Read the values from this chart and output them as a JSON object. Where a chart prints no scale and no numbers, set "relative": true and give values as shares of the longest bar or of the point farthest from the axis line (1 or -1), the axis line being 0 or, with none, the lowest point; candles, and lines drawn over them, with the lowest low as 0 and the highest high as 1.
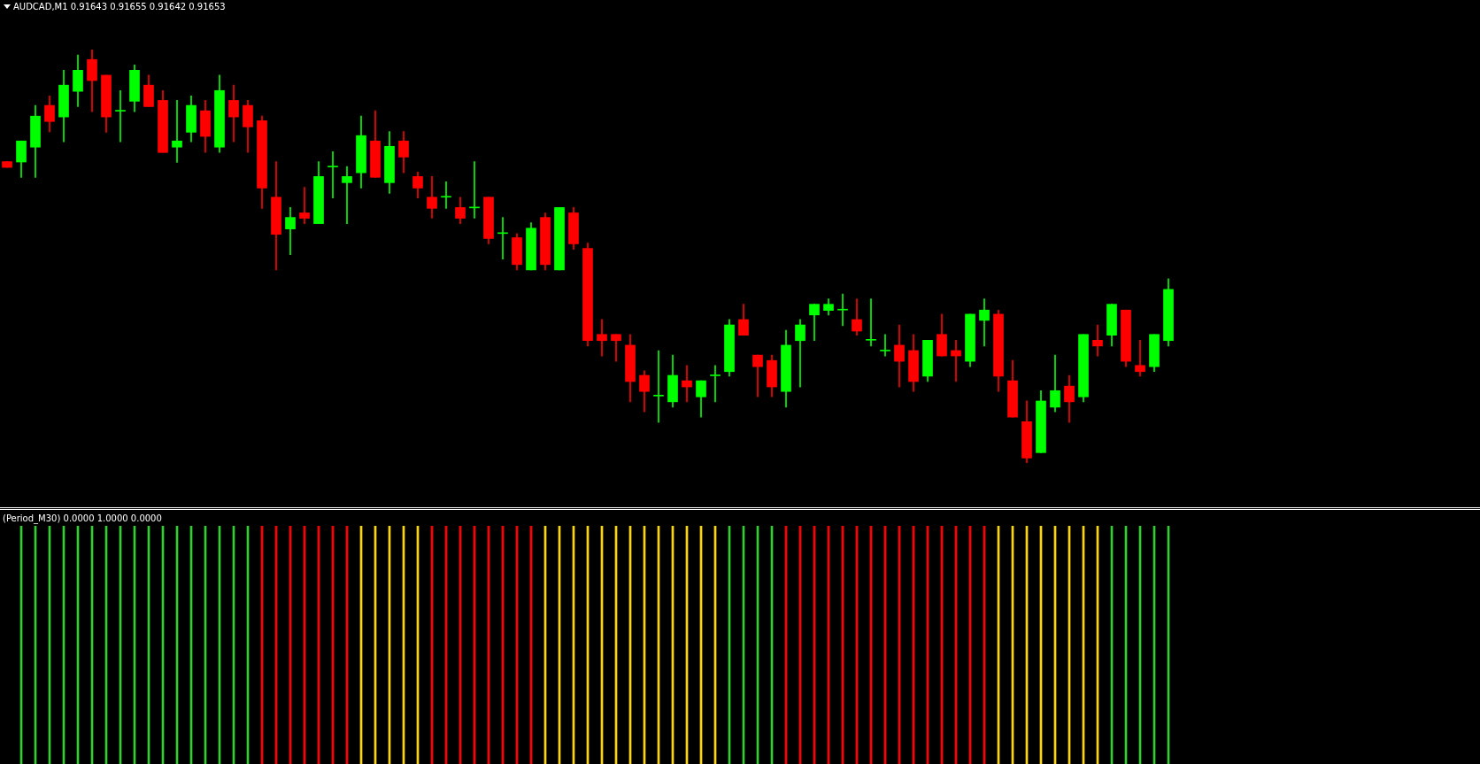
{
  "chart_data": [
    {
      "type": "candlestick",
      "title": "AUDCAD,M1 0.91643 0.91655 0.91642 0.91653",
      "relative": true,
      "categories": [
        null,
        null,
        null,
        null,
        null,
        null,
        null,
        null,
        null,
        null,
        null,
        null,
        null,
        null,
        null,
        null,
        null,
        null,
        null,
        null,
        null,
        null,
        null,
        null,
        null,
        null,
        null,
        null,
        null,
        null,
        null,
        null,
        null,
        null,
        null,
        null,
        null,
        null,
        null,
        null,
        null,
        null,
        null,
        null,
        null,
        null,
        null,
        null,
        null,
        null,
        null,
        null,
        null,
        null,
        null,
        null,
        null,
        null,
        null,
        null,
        null,
        null,
        null,
        null,
        null,
        null,
        null,
        null,
        null,
        null,
        null,
        null,
        null,
        null,
        null,
        null,
        null,
        null,
        null,
        null,
        null,
        null,
        null
      ],
      "ohlc": [
        [
          0.729,
          0.729,
          0.715,
          0.715
        ],
        [
          0.728,
          0.779,
          0.691,
          0.779
        ],
        [
          0.764,
          0.865,
          0.691,
          0.839
        ],
        [
          0.865,
          0.888,
          0.801,
          0.826
        ],
        [
          0.837,
          0.95,
          0.777,
          0.914
        ],
        [
          0.899,
          0.987,
          0.862,
          0.95
        ],
        [
          0.976,
          1.0,
          0.85,
          0.925
        ],
        [
          0.938,
          0.938,
          0.8,
          0.837
        ],
        [
          0.851,
          0.901,
          0.777,
          0.851
        ],
        [
          0.875,
          0.963,
          0.85,
          0.95
        ],
        [
          0.914,
          0.938,
          0.862,
          0.862
        ],
        [
          0.877,
          0.901,
          0.751,
          0.751
        ],
        [
          0.764,
          0.877,
          0.727,
          0.779
        ],
        [
          0.8,
          0.888,
          0.777,
          0.865
        ],
        [
          0.852,
          0.877,
          0.751,
          0.79
        ],
        [
          0.764,
          0.938,
          0.751,
          0.901
        ],
        [
          0.877,
          0.914,
          0.777,
          0.837
        ],
        [
          0.865,
          0.877,
          0.751,
          0.813
        ],
        [
          0.828,
          0.839,
          0.616,
          0.665
        ],
        [
          0.643,
          0.729,
          0.467,
          0.553
        ],
        [
          0.566,
          0.618,
          0.504,
          0.594
        ],
        [
          0.605,
          0.667,
          0.579,
          0.592
        ],
        [
          0.579,
          0.729,
          0.579,
          0.693
        ],
        [
          0.716,
          0.753,
          0.641,
          0.716
        ],
        [
          0.678,
          0.717,
          0.579,
          0.693
        ],
        [
          0.702,
          0.839,
          0.665,
          0.792
        ],
        [
          0.779,
          0.852,
          0.691,
          0.691
        ],
        [
          0.678,
          0.802,
          0.652,
          0.766
        ],
        [
          0.779,
          0.802,
          0.702,
          0.74
        ],
        [
          0.693,
          0.704,
          0.641,
          0.665
        ],
        [
          0.643,
          0.693,
          0.592,
          0.616
        ],
        [
          0.643,
          0.68,
          0.616,
          0.643
        ],
        [
          0.618,
          0.643,
          0.579,
          0.592
        ],
        [
          0.617,
          0.729,
          0.592,
          0.617
        ],
        [
          0.643,
          0.643,
          0.53,
          0.543
        ],
        [
          0.555,
          0.594,
          0.493,
          0.555
        ],
        [
          0.545,
          0.555,
          0.467,
          0.48
        ],
        [
          0.467,
          0.581,
          0.467,
          0.568
        ],
        [
          0.594,
          0.605,
          0.467,
          0.48
        ],
        [
          0.467,
          0.618,
          0.467,
          0.618
        ],
        [
          0.605,
          0.618,
          0.517,
          0.53
        ],
        [
          0.519,
          0.532,
          0.283,
          0.296
        ],
        [
          0.311,
          0.347,
          0.259,
          0.296
        ],
        [
          0.311,
          0.311,
          0.246,
          0.296
        ],
        [
          0.285,
          0.311,
          0.148,
          0.197
        ],
        [
          0.212,
          0.223,
          0.124,
          0.173
        ],
        [
          0.162,
          0.272,
          0.098,
          0.162
        ],
        [
          0.148,
          0.261,
          0.135,
          0.212
        ],
        [
          0.199,
          0.236,
          0.148,
          0.184
        ],
        [
          0.16,
          0.199,
          0.111,
          0.199
        ],
        [
          0.211,
          0.236,
          0.148,
          0.211
        ],
        [
          0.221,
          0.347,
          0.21,
          0.334
        ],
        [
          0.347,
          0.384,
          0.309,
          0.309
        ],
        [
          0.261,
          0.261,
          0.16,
          0.233
        ],
        [
          0.248,
          0.261,
          0.16,
          0.184
        ],
        [
          0.173,
          0.321,
          0.135,
          0.285
        ],
        [
          0.296,
          0.347,
          0.184,
          0.334
        ],
        [
          0.358,
          0.384,
          0.296,
          0.384
        ],
        [
          0.369,
          0.397,
          0.358,
          0.384
        ],
        [
          0.37,
          0.409,
          0.332,
          0.37
        ],
        [
          0.347,
          0.397,
          0.309,
          0.319
        ],
        [
          0.297,
          0.397,
          0.283,
          0.297
        ],
        [
          0.271,
          0.311,
          0.259,
          0.271
        ],
        [
          0.285,
          0.334,
          0.184,
          0.246
        ],
        [
          0.272,
          0.311,
          0.173,
          0.197
        ],
        [
          0.21,
          0.297,
          0.197,
          0.297
        ],
        [
          0.311,
          0.36,
          0.259,
          0.259
        ],
        [
          0.272,
          0.297,
          0.197,
          0.259
        ],
        [
          0.246,
          0.36,
          0.233,
          0.36
        ],
        [
          0.345,
          0.397,
          0.283,
          0.37
        ],
        [
          0.36,
          0.37,
          0.173,
          0.21
        ],
        [
          0.199,
          0.248,
          0.111,
          0.111
        ],
        [
          0.1,
          0.15,
          0.0,
          0.012
        ],
        [
          0.025,
          0.175,
          0.025,
          0.15
        ],
        [
          0.135,
          0.261,
          0.124,
          0.175
        ],
        [
          0.186,
          0.212,
          0.098,
          0.148
        ],
        [
          0.16,
          0.311,
          0.148,
          0.311
        ],
        [
          0.297,
          0.334,
          0.259,
          0.283
        ],
        [
          0.309,
          0.384,
          0.283,
          0.384
        ],
        [
          0.37,
          0.37,
          0.233,
          0.246
        ],
        [
          0.236,
          0.297,
          0.21,
          0.221
        ],
        [
          0.233,
          0.311,
          0.221,
          0.311
        ],
        [
          0.296,
          0.446,
          0.283,
          0.42
        ]
      ],
      "colors": [
        "#ff0000",
        "#00ff00",
        "#00ff00",
        "#ff0000",
        "#00ff00",
        "#00ff00",
        "#ff0000",
        "#ff0000",
        "#00ff00",
        "#00ff00",
        "#ff0000",
        "#ff0000",
        "#00ff00",
        "#00ff00",
        "#ff0000",
        "#00ff00",
        "#ff0000",
        "#ff0000",
        "#ff0000",
        "#ff0000",
        "#00ff00",
        "#ff0000",
        "#00ff00",
        "#00ff00",
        "#00ff00",
        "#00ff00",
        "#ff0000",
        "#00ff00",
        "#ff0000",
        "#ff0000",
        "#ff0000",
        "#00ff00",
        "#ff0000",
        "#00ff00",
        "#ff0000",
        "#00ff00",
        "#ff0000",
        "#00ff00",
        "#ff0000",
        "#00ff00",
        "#ff0000",
        "#ff0000",
        "#ff0000",
        "#ff0000",
        "#ff0000",
        "#ff0000",
        "#00ff00",
        "#00ff00",
        "#ff0000",
        "#00ff00",
        "#00ff00",
        "#00ff00",
        "#ff0000",
        "#ff0000",
        "#ff0000",
        "#00ff00",
        "#00ff00",
        "#00ff00",
        "#00ff00",
        "#00ff00",
        "#ff0000",
        "#00ff00",
        "#00ff00",
        "#ff0000",
        "#ff0000",
        "#00ff00",
        "#ff0000",
        "#ff0000",
        "#00ff00",
        "#00ff00",
        "#ff0000",
        "#ff0000",
        "#ff0000",
        "#00ff00",
        "#00ff00",
        "#ff0000",
        "#00ff00",
        "#ff0000",
        "#00ff00",
        "#ff0000",
        "#ff0000",
        "#00ff00",
        "#00ff00"
      ]
    },
    {
      "type": "bar",
      "title": "(Period_M30) 0.0000 1.0000 0.0000",
      "relative": true,
      "categories": [
        null,
        null,
        null,
        null,
        null,
        null,
        null,
        null,
        null,
        null,
        null,
        null,
        null,
        null,
        null,
        null,
        null,
        null,
        null,
        null,
        null,
        null,
        null,
        null,
        null,
        null,
        null,
        null,
        null,
        null,
        null,
        null,
        null,
        null,
        null,
        null,
        null,
        null,
        null,
        null,
        null,
        null,
        null,
        null,
        null,
        null,
        null,
        null,
        null,
        null,
        null,
        null,
        null,
        null,
        null,
        null,
        null,
        null,
        null,
        null,
        null,
        null,
        null,
        null,
        null,
        null,
        null,
        null,
        null,
        null,
        null,
        null,
        null,
        null,
        null,
        null,
        null,
        null,
        null,
        null,
        null,
        null,
        null
      ],
      "values": [
        null,
        1,
        1,
        1,
        1,
        1,
        1,
        1,
        1,
        1,
        1,
        1,
        1,
        1,
        1,
        1,
        1,
        1,
        1,
        1,
        1,
        1,
        1,
        1,
        1,
        1,
        1,
        1,
        1,
        1,
        1,
        1,
        1,
        1,
        1,
        1,
        1,
        1,
        1,
        1,
        1,
        1,
        1,
        1,
        1,
        1,
        1,
        1,
        1,
        1,
        1,
        1,
        1,
        1,
        1,
        1,
        1,
        1,
        1,
        1,
        1,
        1,
        1,
        1,
        1,
        1,
        1,
        1,
        1,
        1,
        1,
        1,
        1,
        1,
        1,
        1,
        1,
        1,
        1,
        1,
        1,
        1,
        1
      ],
      "colors": [
        "#32cd32",
        "#32cd32",
        "#32cd32",
        "#32cd32",
        "#32cd32",
        "#32cd32",
        "#32cd32",
        "#32cd32",
        "#32cd32",
        "#32cd32",
        "#32cd32",
        "#32cd32",
        "#32cd32",
        "#32cd32",
        "#32cd32",
        "#32cd32",
        "#32cd32",
        "#32cd32",
        "#ff0000",
        "#ff0000",
        "#ff0000",
        "#ff0000",
        "#ff0000",
        "#ff0000",
        "#ff0000",
        "#ffd700",
        "#ffd700",
        "#ffd700",
        "#ffd700",
        "#ffd700",
        "#ff0000",
        "#ff0000",
        "#ff0000",
        "#ff0000",
        "#ff0000",
        "#ff0000",
        "#ff0000",
        "#ff0000",
        "#ffd700",
        "#ffd700",
        "#ffd700",
        "#ffd700",
        "#ffd700",
        "#ffd700",
        "#ffd700",
        "#ffd700",
        "#ffd700",
        "#ffd700",
        "#ffd700",
        "#ffd700",
        "#ffd700",
        "#32cd32",
        "#32cd32",
        "#32cd32",
        "#32cd32",
        "#ff0000",
        "#ff0000",
        "#ff0000",
        "#ff0000",
        "#ff0000",
        "#ff0000",
        "#ff0000",
        "#ff0000",
        "#ff0000",
        "#ff0000",
        "#ff0000",
        "#ff0000",
        "#ff0000",
        "#ff0000",
        "#ff0000",
        "#ffd700",
        "#ffd700",
        "#ffd700",
        "#ffd700",
        "#ffd700",
        "#ffd700",
        "#ffd700",
        "#ffd700",
        "#32cd32",
        "#32cd32",
        "#32cd32",
        "#32cd32",
        "#32cd32"
      ]
    }
  ]
}
